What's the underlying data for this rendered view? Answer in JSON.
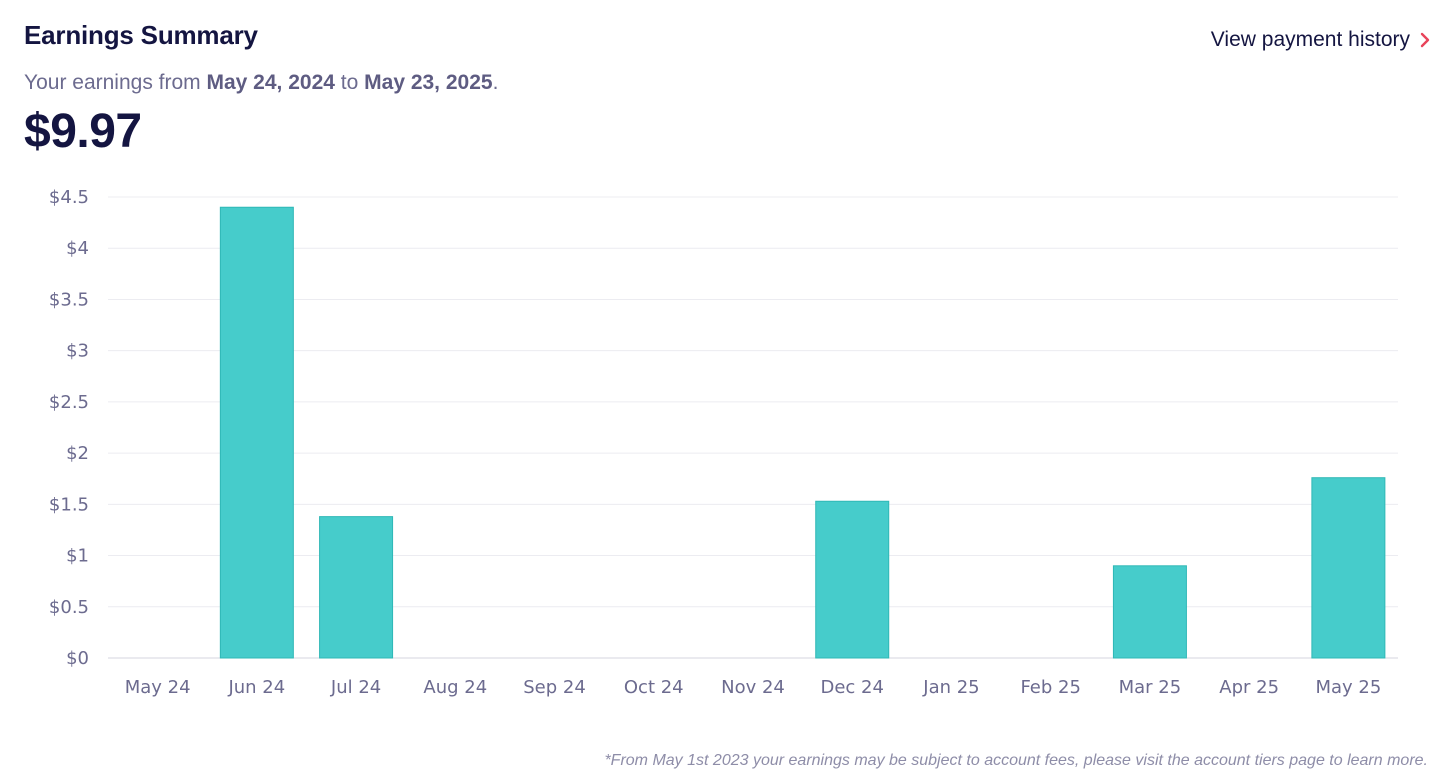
{
  "header": {
    "title": "Earnings Summary",
    "history_link": "View payment history",
    "subtitle_prefix": "Your earnings from",
    "start_date": "May 24, 2024",
    "subtitle_mid": "to",
    "end_date": "May 23, 2025",
    "subtitle_suffix": ".",
    "total": "$9.97"
  },
  "colors": {
    "bar": "#46cccb",
    "bar_edge": "#2fb8b6",
    "grid": "#ececf1",
    "accent": "#e8445a"
  },
  "chart_data": {
    "type": "bar",
    "title": "",
    "xlabel": "",
    "ylabel": "",
    "categories": [
      "May 24",
      "Jun 24",
      "Jul 24",
      "Aug 24",
      "Sep 24",
      "Oct 24",
      "Nov 24",
      "Dec 24",
      "Jan 25",
      "Feb 25",
      "Mar 25",
      "Apr 25",
      "May 25"
    ],
    "values": [
      0,
      4.4,
      1.38,
      0,
      0,
      0,
      0,
      1.53,
      0,
      0,
      0.9,
      0,
      1.76
    ],
    "ylim": [
      0,
      4.5
    ],
    "yticks": [
      0,
      0.5,
      1,
      1.5,
      2,
      2.5,
      3,
      3.5,
      4,
      4.5
    ],
    "ytick_labels": [
      "$0",
      "$0.5",
      "$1",
      "$1.5",
      "$2",
      "$2.5",
      "$3",
      "$3.5",
      "$4",
      "$4.5"
    ],
    "grid": true
  },
  "footnote": "*From May 1st 2023 your earnings may be subject to account fees, please visit the account tiers page to learn more."
}
